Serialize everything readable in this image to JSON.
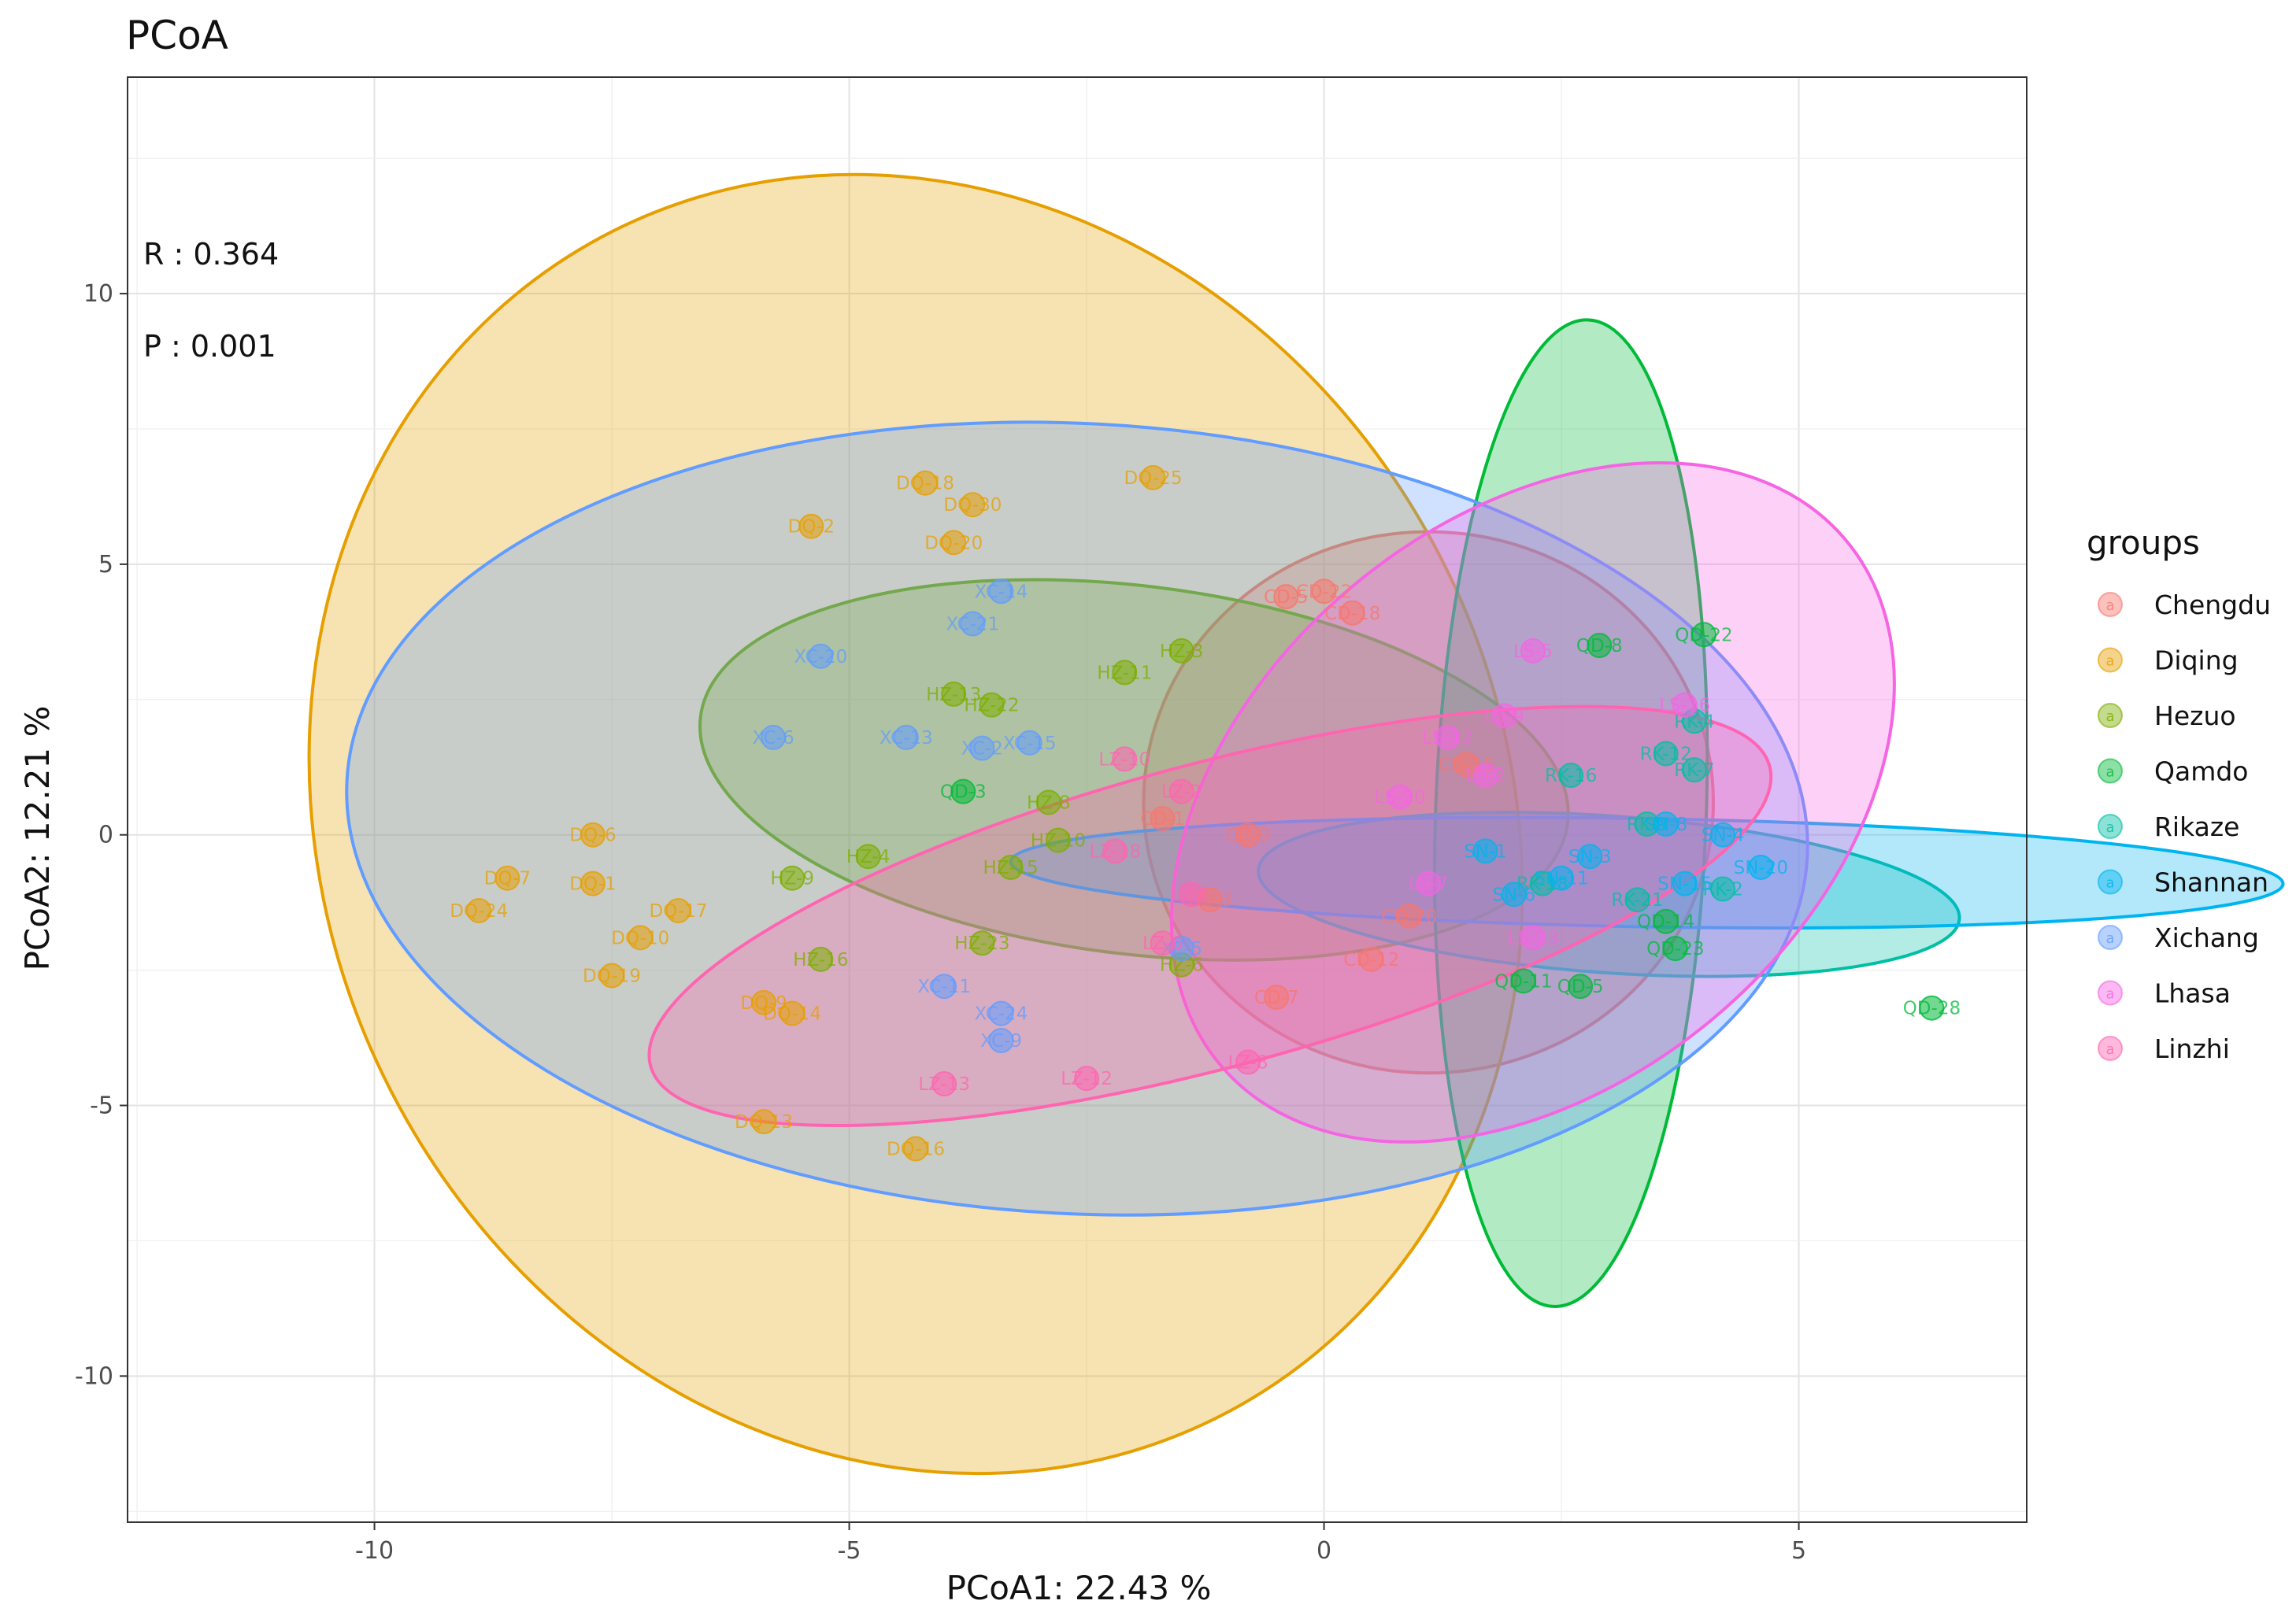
{
  "chart_data": {
    "type": "scatter",
    "title": "PCoA",
    "xlabel": "PCoA1:  22.43 %",
    "ylabel": "PCoA2:  12.21 %",
    "xlim": [
      -12.6,
      7.4
    ],
    "ylim": [
      -12.7,
      14.0
    ],
    "xticks": [
      -10,
      -5,
      0,
      5
    ],
    "yticks": [
      -10,
      -5,
      0,
      5,
      10
    ],
    "grid": true,
    "legend": {
      "title": "groups",
      "position": "right"
    },
    "annotations": {
      "r": "R : 0.364",
      "p": "P : 0.001"
    },
    "series": [
      {
        "name": "Chengdu",
        "color": "#F8766D",
        "ellipse": {
          "cx": 1.1,
          "cy": 0.6,
          "rx": 3.0,
          "ry": 5.0,
          "angle_deg": 0
        },
        "points": [
          {
            "x": -0.4,
            "y": 4.4,
            "label": "CD-5"
          },
          {
            "x": 0.0,
            "y": 4.5,
            "label": "CD-22"
          },
          {
            "x": 0.3,
            "y": 4.1,
            "label": "CD-18"
          },
          {
            "x": -0.8,
            "y": 0.0,
            "label": "CD-9"
          },
          {
            "x": -1.2,
            "y": -1.2,
            "label": "CD-3"
          },
          {
            "x": -0.5,
            "y": -3.0,
            "label": "CD-7"
          },
          {
            "x": 0.5,
            "y": -2.3,
            "label": "CD-12"
          },
          {
            "x": 1.5,
            "y": 1.3,
            "label": "CD-15"
          },
          {
            "x": 0.9,
            "y": -1.5,
            "label": "CD-20"
          },
          {
            "x": -1.7,
            "y": 0.3,
            "label": "CD-1"
          }
        ]
      },
      {
        "name": "Diqing",
        "color": "#E69F00",
        "ellipse": {
          "cx": -4.3,
          "cy": 0.2,
          "rx": 6.2,
          "ry": 12.3,
          "angle_deg": 28
        },
        "points": [
          {
            "x": -4.2,
            "y": 6.5,
            "label": "DQ-18"
          },
          {
            "x": -3.7,
            "y": 6.1,
            "label": "DQ-30"
          },
          {
            "x": -1.8,
            "y": 6.6,
            "label": "DQ-25"
          },
          {
            "x": -5.4,
            "y": 5.7,
            "label": "DQ-2"
          },
          {
            "x": -3.9,
            "y": 5.4,
            "label": "DQ-20"
          },
          {
            "x": -7.7,
            "y": 0.0,
            "label": "DQ-6"
          },
          {
            "x": -8.6,
            "y": -0.8,
            "label": "DQ-7"
          },
          {
            "x": -7.7,
            "y": -0.9,
            "label": "DQ-1"
          },
          {
            "x": -8.9,
            "y": -1.4,
            "label": "DQ-24"
          },
          {
            "x": -6.8,
            "y": -1.4,
            "label": "DQ-17"
          },
          {
            "x": -7.2,
            "y": -1.9,
            "label": "DQ-10"
          },
          {
            "x": -7.5,
            "y": -2.6,
            "label": "DQ-19"
          },
          {
            "x": -5.9,
            "y": -3.1,
            "label": "DQ-9"
          },
          {
            "x": -5.6,
            "y": -3.3,
            "label": "DQ-14"
          },
          {
            "x": -5.9,
            "y": -5.3,
            "label": "DQ-13"
          },
          {
            "x": -4.3,
            "y": -5.8,
            "label": "DQ-16"
          }
        ]
      },
      {
        "name": "Hezuo",
        "color": "#7CAE00",
        "ellipse": {
          "cx": -2.0,
          "cy": 1.2,
          "rx": 4.6,
          "ry": 3.4,
          "angle_deg": -7
        },
        "points": [
          {
            "x": -2.1,
            "y": 3.0,
            "label": "HZ-11"
          },
          {
            "x": -1.5,
            "y": 3.4,
            "label": "HZ-3"
          },
          {
            "x": -3.9,
            "y": 2.6,
            "label": "HZ-13"
          },
          {
            "x": -3.5,
            "y": 2.4,
            "label": "HZ-22"
          },
          {
            "x": -2.9,
            "y": 0.6,
            "label": "HZ-8"
          },
          {
            "x": -2.8,
            "y": -0.1,
            "label": "HZ-10"
          },
          {
            "x": -3.3,
            "y": -0.6,
            "label": "HZ-15"
          },
          {
            "x": -4.8,
            "y": -0.4,
            "label": "HZ-4"
          },
          {
            "x": -5.6,
            "y": -0.8,
            "label": "HZ-9"
          },
          {
            "x": -5.3,
            "y": -2.3,
            "label": "HZ-16"
          },
          {
            "x": -3.6,
            "y": -2.0,
            "label": "HZ-23"
          },
          {
            "x": -1.5,
            "y": -2.4,
            "label": "HZ-6"
          }
        ]
      },
      {
        "name": "Qamdo",
        "color": "#00BA38",
        "ellipse": {
          "cx": 2.6,
          "cy": 0.4,
          "rx": 5.2,
          "ry": 2.5,
          "angle_deg": 88
        },
        "points": [
          {
            "x": 4.0,
            "y": 3.7,
            "label": "QD-22"
          },
          {
            "x": 2.9,
            "y": 3.5,
            "label": "QD-8"
          },
          {
            "x": 6.4,
            "y": -3.2,
            "label": "QD-28"
          },
          {
            "x": 2.7,
            "y": -2.8,
            "label": "QD-5"
          },
          {
            "x": 3.7,
            "y": -2.1,
            "label": "QD-23"
          },
          {
            "x": 2.1,
            "y": -2.7,
            "label": "QD-11"
          },
          {
            "x": -3.8,
            "y": 0.8,
            "label": "QD-3"
          },
          {
            "x": 3.6,
            "y": -1.6,
            "label": "QD-14"
          }
        ]
      },
      {
        "name": "Rikaze",
        "color": "#00BFA4",
        "ellipse": {
          "cx": 3.0,
          "cy": -1.1,
          "rx": 3.7,
          "ry": 1.45,
          "angle_deg": -4
        },
        "points": [
          {
            "x": 3.9,
            "y": 2.1,
            "label": "RK-4"
          },
          {
            "x": 3.9,
            "y": 1.2,
            "label": "RK-7"
          },
          {
            "x": 3.6,
            "y": 1.5,
            "label": "RK-12"
          },
          {
            "x": 2.6,
            "y": 1.1,
            "label": "RK-16"
          },
          {
            "x": 3.3,
            "y": -1.2,
            "label": "RK-21"
          },
          {
            "x": 3.4,
            "y": 0.2,
            "label": "RK-9"
          },
          {
            "x": 4.2,
            "y": -1.0,
            "label": "RK-2"
          },
          {
            "x": 2.3,
            "y": -0.9,
            "label": "RK-18"
          }
        ]
      },
      {
        "name": "Shannan",
        "color": "#00B4EF",
        "ellipse": {
          "cx": 3.4,
          "cy": -0.7,
          "rx": 6.7,
          "ry": 1.0,
          "angle_deg": -1
        },
        "points": [
          {
            "x": 4.2,
            "y": 0.0,
            "label": "SN-4"
          },
          {
            "x": 3.6,
            "y": 0.2,
            "label": "SN-8"
          },
          {
            "x": 2.8,
            "y": -0.4,
            "label": "SN-3"
          },
          {
            "x": 2.5,
            "y": -0.8,
            "label": "SN-11"
          },
          {
            "x": 3.8,
            "y": -0.9,
            "label": "SN-15"
          },
          {
            "x": 4.6,
            "y": -0.6,
            "label": "SN-20"
          },
          {
            "x": 2.0,
            "y": -1.1,
            "label": "SN-6"
          },
          {
            "x": 1.7,
            "y": -0.3,
            "label": "SN-1"
          }
        ]
      },
      {
        "name": "Xichang",
        "color": "#619CFF",
        "ellipse": {
          "cx": -2.6,
          "cy": 0.3,
          "rx": 7.7,
          "ry": 7.3,
          "angle_deg": -3
        },
        "points": [
          {
            "x": -3.4,
            "y": 4.5,
            "label": "XC-14"
          },
          {
            "x": -3.7,
            "y": 3.9,
            "label": "XC-21"
          },
          {
            "x": -5.3,
            "y": 3.3,
            "label": "XC-20"
          },
          {
            "x": -5.8,
            "y": 1.8,
            "label": "XC-6"
          },
          {
            "x": -4.4,
            "y": 1.8,
            "label": "XC-13"
          },
          {
            "x": -3.1,
            "y": 1.7,
            "label": "XC-15"
          },
          {
            "x": -3.6,
            "y": 1.6,
            "label": "XC-2"
          },
          {
            "x": -4.0,
            "y": -2.8,
            "label": "XC-11"
          },
          {
            "x": -3.4,
            "y": -3.3,
            "label": "XC-24"
          },
          {
            "x": -3.4,
            "y": -3.8,
            "label": "XC-9"
          },
          {
            "x": -1.5,
            "y": -2.1,
            "label": "XC-5"
          }
        ]
      },
      {
        "name": "Lhasa",
        "color": "#F564E3",
        "ellipse": {
          "cx": 2.2,
          "cy": 0.6,
          "rx": 4.3,
          "ry": 5.2,
          "angle_deg": 40
        },
        "points": [
          {
            "x": 3.8,
            "y": 2.4,
            "label": "LS-16"
          },
          {
            "x": 2.2,
            "y": 3.4,
            "label": "LS-5"
          },
          {
            "x": 1.9,
            "y": 2.2,
            "label": "LS-9"
          },
          {
            "x": 1.3,
            "y": 1.8,
            "label": "LS-12"
          },
          {
            "x": 1.7,
            "y": 1.1,
            "label": "LS-2"
          },
          {
            "x": 0.8,
            "y": 0.7,
            "label": "LS-20"
          },
          {
            "x": 1.1,
            "y": -0.9,
            "label": "LS-7"
          },
          {
            "x": 2.2,
            "y": -1.9,
            "label": "LS-23"
          }
        ]
      },
      {
        "name": "Linzhi",
        "color": "#FF64B0",
        "ellipse": {
          "cx": -1.2,
          "cy": -1.5,
          "rx": 6.1,
          "ry": 2.8,
          "angle_deg": 15
        },
        "points": [
          {
            "x": -4.0,
            "y": -4.6,
            "label": "LZ-13"
          },
          {
            "x": -2.5,
            "y": -4.5,
            "label": "LZ-12"
          },
          {
            "x": -1.4,
            "y": -1.1,
            "label": "LZ-1"
          },
          {
            "x": -1.7,
            "y": -2.0,
            "label": "LZ-6"
          },
          {
            "x": -2.2,
            "y": -0.3,
            "label": "LZ-18"
          },
          {
            "x": -0.8,
            "y": -4.2,
            "label": "LZ-8"
          },
          {
            "x": -1.5,
            "y": 0.8,
            "label": "LZ-2"
          },
          {
            "x": -2.1,
            "y": 1.4,
            "label": "LZ-10"
          }
        ]
      }
    ]
  }
}
